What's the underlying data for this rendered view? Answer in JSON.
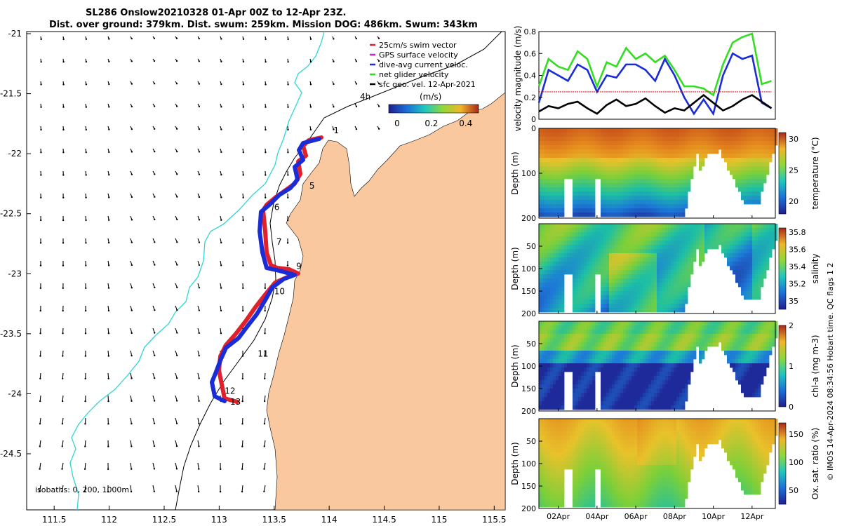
{
  "title": {
    "line1": "SL286 Onslow20210328 01-Apr 00Z to 12-Apr 23Z.",
    "line2": "Dist. over ground: 379km. Dist. swum: 259km. Mission DOG: 486km. Swum: 343km"
  },
  "map": {
    "legend": [
      {
        "label": "25cm/s swim vector",
        "color": "#e0202a"
      },
      {
        "label": "GPS surface velocity",
        "color": "#d020d0"
      },
      {
        "label": "dive-avg current veloc.",
        "color": "#1a2bd8"
      },
      {
        "label": "net glider velocity",
        "color": "#33dd22"
      },
      {
        "label": "sfc geo. vel. 12-Apr-2021",
        "color": "#000000"
      }
    ],
    "hour_label": "4h",
    "colorbar_label": "(m/s)",
    "colorbar_ticks": [
      "0",
      "0.2",
      "0.4"
    ],
    "isobaths_label": "isobaths: 0, 200, 1000m",
    "lon_ticks": [
      "111.5",
      "112",
      "112.5",
      "113",
      "113.5",
      "114",
      "114.5",
      "115",
      "115.5"
    ],
    "lat_ticks": [
      "-21",
      "-21.5",
      "-22",
      "-22.5",
      "-23",
      "-23.5",
      "-24",
      "-24.5"
    ],
    "day_markers": [
      {
        "label": "1",
        "lon": 114.04,
        "lat": -21.83
      },
      {
        "label": "5",
        "lon": 113.82,
        "lat": -22.29
      },
      {
        "label": "6",
        "lon": 113.5,
        "lat": -22.47
      },
      {
        "label": "7",
        "lon": 113.52,
        "lat": -22.76
      },
      {
        "label": "9",
        "lon": 113.7,
        "lat": -22.96
      },
      {
        "label": "10",
        "lon": 113.5,
        "lat": -23.17
      },
      {
        "label": "11",
        "lon": 113.35,
        "lat": -23.69
      },
      {
        "label": "12",
        "lon": 113.05,
        "lat": -24.0
      },
      {
        "label": "13",
        "lon": 113.1,
        "lat": -24.09
      }
    ],
    "colors": {
      "land": "#f9c89f",
      "track_red": "#e0202a",
      "track_blue": "#1a2bd8",
      "coast_cyan": "#30d5d5"
    }
  },
  "chart_data": [
    {
      "type": "line",
      "ylabel": "velocity magnitude (m/s)",
      "ylim": [
        0,
        0.8
      ],
      "yticks": [
        "0",
        "0.2",
        "0.4",
        "0.6",
        "0.8"
      ],
      "x_days": [
        0,
        0.5,
        1,
        1.5,
        2,
        2.5,
        3,
        3.5,
        4,
        4.5,
        5,
        5.5,
        6,
        6.5,
        7,
        7.5,
        8,
        8.5,
        9,
        9.5,
        10,
        10.5,
        11,
        11.5,
        12
      ],
      "series": [
        {
          "name": "net glider velocity",
          "color": "#33dd22",
          "values": [
            0.3,
            0.55,
            0.48,
            0.45,
            0.62,
            0.55,
            0.3,
            0.52,
            0.48,
            0.65,
            0.55,
            0.6,
            0.52,
            0.58,
            0.45,
            0.3,
            0.3,
            0.28,
            0.22,
            0.5,
            0.7,
            0.75,
            0.78,
            0.32,
            0.35
          ]
        },
        {
          "name": "dive-avg current veloc.",
          "color": "#1a2bd8",
          "values": [
            0.15,
            0.45,
            0.4,
            0.35,
            0.5,
            0.45,
            0.25,
            0.4,
            0.38,
            0.5,
            0.5,
            0.45,
            0.35,
            0.55,
            0.4,
            0.2,
            0.05,
            0.18,
            0.05,
            0.4,
            0.6,
            0.55,
            0.58,
            0.15,
            0.1
          ]
        },
        {
          "name": "25cm/s swim vector",
          "color": "#e0202a",
          "values": [
            0.25,
            0.25,
            0.25,
            0.25,
            0.25,
            0.25,
            0.25,
            0.25,
            0.25,
            0.25,
            0.25,
            0.25,
            0.25,
            0.25,
            0.25,
            0.25,
            0.25,
            0.25,
            0.25,
            0.25,
            0.25,
            0.25,
            0.25,
            0.25,
            0.25
          ]
        },
        {
          "name": "sfc geo. vel.",
          "color": "#000000",
          "values": [
            0.07,
            0.12,
            0.1,
            0.14,
            0.16,
            0.1,
            0.05,
            0.13,
            0.18,
            0.12,
            0.14,
            0.19,
            0.12,
            0.06,
            0.1,
            0.08,
            0.15,
            0.22,
            0.15,
            0.08,
            0.12,
            0.18,
            0.22,
            0.16,
            0.1
          ]
        }
      ]
    },
    {
      "type": "heatmap",
      "variable": "temperature",
      "cbar_label": "temperature (°C)",
      "cbar_ticks": [
        "20",
        "25",
        "30"
      ],
      "cbar_range": [
        18,
        31
      ],
      "ylabel": "Depth (m)",
      "ylim": [
        200,
        0
      ],
      "yticks": [
        "0",
        "100",
        "200"
      ],
      "colors": [
        "#1f2a9a",
        "#1d7ad8",
        "#1dbfa5",
        "#7ad03a",
        "#e8c22b",
        "#e48a1d",
        "#c8501a"
      ]
    },
    {
      "type": "heatmap",
      "variable": "salinity",
      "cbar_label": "salinity",
      "cbar_ticks": [
        "35",
        "35.2",
        "35.4",
        "35.6",
        "35.8"
      ],
      "cbar_range": [
        34.9,
        35.85
      ],
      "ylabel": "Depth (m)",
      "ylim": [
        200,
        0
      ],
      "yticks": [
        "50",
        "100",
        "150",
        "200"
      ],
      "colors": [
        "#1f2a9a",
        "#1d7ad8",
        "#1dbfa5",
        "#7ad03a",
        "#e8c22b",
        "#e48a1d",
        "#c8501a"
      ]
    },
    {
      "type": "heatmap",
      "variable": "chl-a",
      "cbar_label": "chl-a (mg m-3)",
      "cbar_ticks": [
        "0",
        "1",
        "2"
      ],
      "cbar_range": [
        0,
        2
      ],
      "ylabel": "Depth (m)",
      "ylim": [
        200,
        0
      ],
      "yticks": [
        "50",
        "100",
        "150",
        "200"
      ],
      "colors": [
        "#1f2a9a",
        "#1d7ad8",
        "#1dbfa5",
        "#7ad03a",
        "#e8c22b",
        "#e48a1d",
        "#c8501a"
      ]
    },
    {
      "type": "heatmap",
      "variable": "oxygen",
      "cbar_label": "Ox. sat. ratio (%)",
      "cbar_ticks": [
        "50",
        "100",
        "150"
      ],
      "cbar_range": [
        25,
        170
      ],
      "ylabel": "Depth (m)",
      "ylim": [
        200,
        0
      ],
      "yticks": [
        "50",
        "100",
        "150",
        "200"
      ],
      "xticks": [
        "02Apr",
        "04Apr",
        "06Apr",
        "08Apr",
        "10Apr",
        "12Apr"
      ],
      "colors": [
        "#1f2a9a",
        "#1d7ad8",
        "#1dbfa5",
        "#7ad03a",
        "#e8c22b",
        "#e48a1d",
        "#c8501a"
      ]
    }
  ],
  "side_note": "© IMOS 14-Apr-2024 08:34:56 Hobart time. QC flags 1 2"
}
